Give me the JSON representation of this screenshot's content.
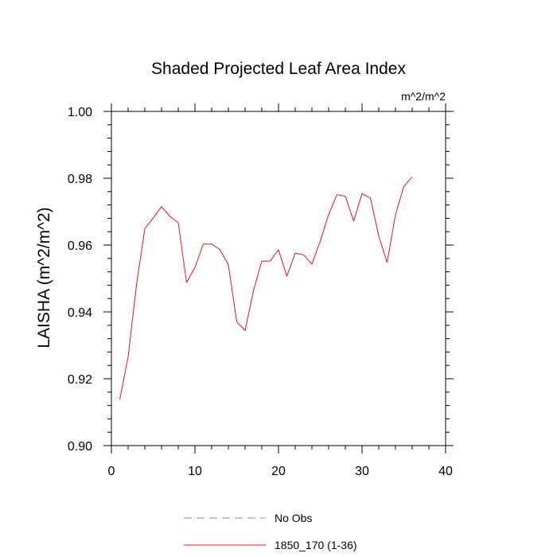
{
  "chart_data": {
    "type": "line",
    "title": "Shaded Projected Leaf Area Index",
    "units": "m^2/m^2",
    "xlabel": "",
    "ylabel": "LAISHA  (m^2/m^2)",
    "xlim": [
      0,
      40
    ],
    "ylim": [
      0.9,
      1.0
    ],
    "x_ticks": [
      0,
      10,
      20,
      30,
      40
    ],
    "x_tick_labels": [
      "0",
      "10",
      "20",
      "30",
      "40"
    ],
    "y_ticks": [
      0.9,
      0.92,
      0.94,
      0.96,
      0.98,
      1.0
    ],
    "y_tick_labels": [
      "0.90",
      "0.92",
      "0.94",
      "0.96",
      "0.98",
      "1.00"
    ],
    "grid": false,
    "legend_position": "bottom-center",
    "series": [
      {
        "name": "1850_170 (1-36)",
        "color": "#e8121d",
        "style": "solid",
        "x": [
          1,
          2,
          3,
          4,
          5,
          6,
          7,
          8,
          9,
          10,
          11,
          12,
          13,
          14,
          15,
          16,
          17,
          18,
          19,
          20,
          21,
          22,
          23,
          24,
          25,
          26,
          27,
          28,
          29,
          30,
          31,
          32,
          33,
          34,
          35,
          36
        ],
        "values": [
          0.9137,
          0.9265,
          0.948,
          0.9649,
          0.9681,
          0.9715,
          0.9686,
          0.9667,
          0.9488,
          0.9533,
          0.9603,
          0.9603,
          0.9586,
          0.9541,
          0.9371,
          0.9344,
          0.9463,
          0.9552,
          0.9552,
          0.9586,
          0.9507,
          0.9576,
          0.9571,
          0.9543,
          0.9612,
          0.9691,
          0.9751,
          0.9746,
          0.9672,
          0.9754,
          0.9741,
          0.9627,
          0.9548,
          0.9691,
          0.9775,
          0.9804
        ]
      }
    ],
    "legend": [
      {
        "label": "No Obs",
        "color": "#8080ff",
        "style": "dashed"
      },
      {
        "label": "1850_170 (1-36)",
        "color": "#e8121d",
        "style": "solid"
      }
    ]
  }
}
